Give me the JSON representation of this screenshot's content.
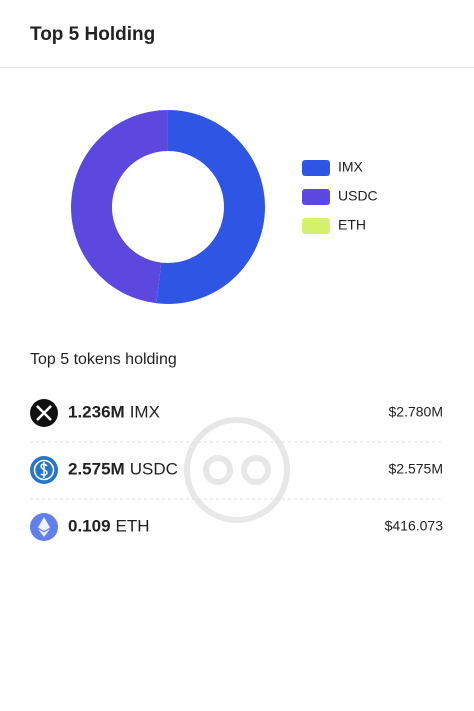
{
  "header": {
    "title": "Top 5 Holding"
  },
  "chart_data": {
    "type": "pie",
    "donut": true,
    "categories": [
      "IMX",
      "USDC",
      "ETH"
    ],
    "values": [
      2780000,
      2575000,
      416.073
    ],
    "value_labels": [
      "$2.780M",
      "$2.575M",
      "$416.073"
    ],
    "colors": [
      "#2f55e4",
      "#5c48de",
      "#d6f26c"
    ],
    "legend": "right"
  },
  "list": {
    "title": "Top 5 tokens holding",
    "amounts": [
      "1.236M",
      "2.575M",
      "0.109"
    ]
  }
}
